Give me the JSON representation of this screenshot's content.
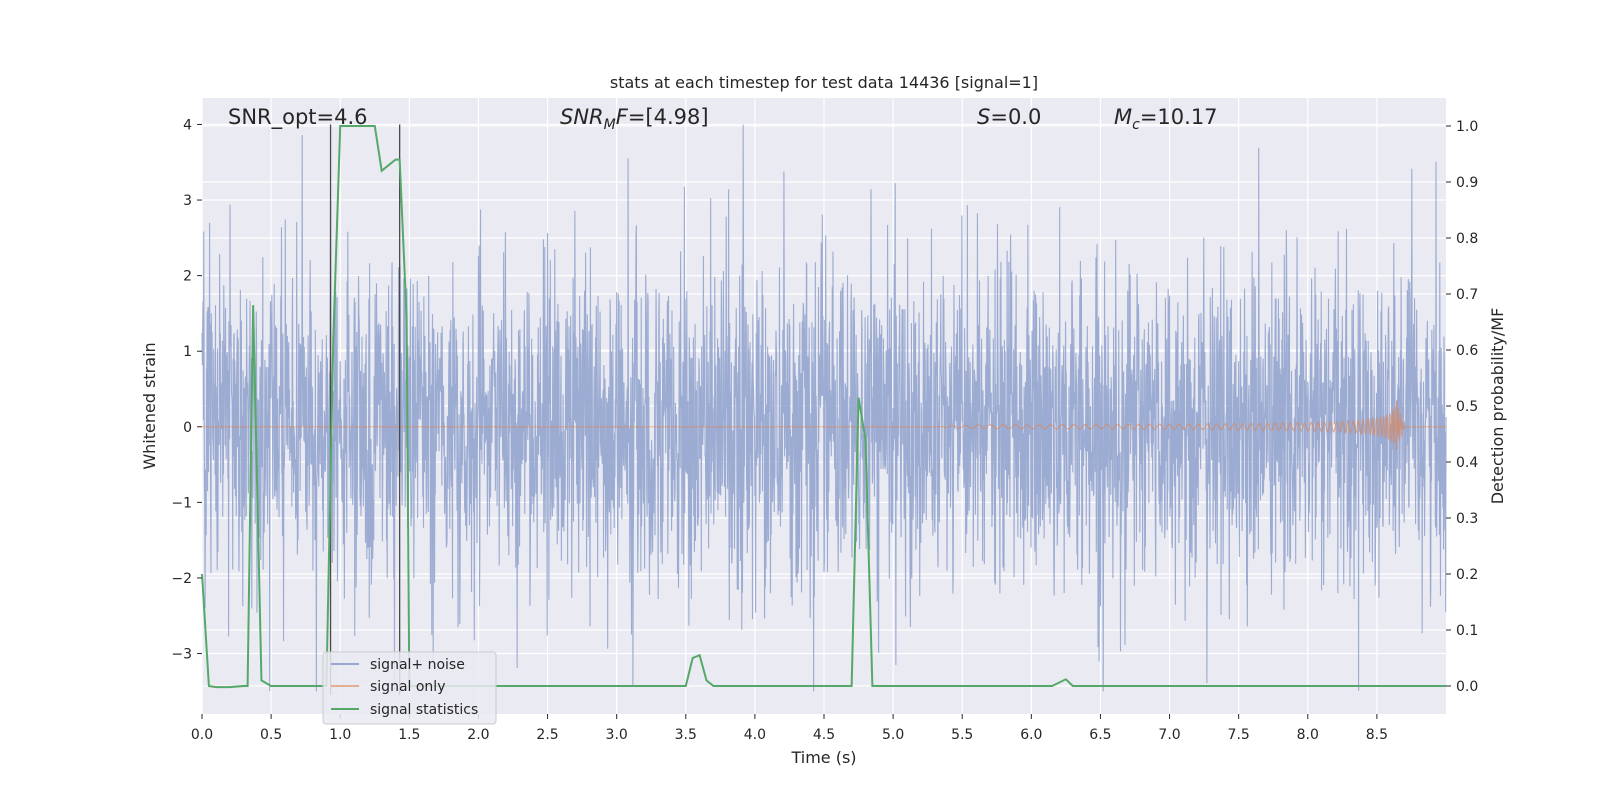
{
  "chart_data": {
    "type": "line",
    "title": "stats at each timestep for test data 14436 [signal=1]",
    "xlabel": "Time (s)",
    "ylabel_left": "Whitened strain",
    "ylabel_right": "Detection probability/MF",
    "xlim": [
      0.0,
      9.0
    ],
    "ylim_left": [
      -3.8,
      4.35
    ],
    "ylim_right": [
      -0.05,
      1.05
    ],
    "x_ticks": [
      "0.0",
      "0.5",
      "1.0",
      "1.5",
      "2.0",
      "2.5",
      "3.0",
      "3.5",
      "4.0",
      "4.5",
      "5.0",
      "5.5",
      "6.0",
      "6.5",
      "7.0",
      "7.5",
      "8.0",
      "8.5"
    ],
    "y_ticks_left": [
      "4",
      "3",
      "2",
      "1",
      "0",
      "−1",
      "−2",
      "−3"
    ],
    "y_ticks_right": [
      "1.0",
      "0.9",
      "0.8",
      "0.7",
      "0.6",
      "0.5",
      "0.4",
      "0.3",
      "0.2",
      "0.1",
      "0.0"
    ],
    "grid": true,
    "legend_position": "lower-left",
    "annotations": {
      "snr_opt": "SNR_opt=4.6",
      "snr_mf": "=[4.98]",
      "s_val": "=0.0",
      "mc": "=10.17"
    },
    "vertical_lines_x": [
      0.93,
      1.43
    ],
    "series": [
      {
        "name": "signal+ noise",
        "axis": "left",
        "color": "#97a8d0",
        "description_value_range": [
          -3.5,
          4.0
        ]
      },
      {
        "name": "signal only",
        "axis": "left",
        "color": "#dd8452",
        "chirp_start": 5.3,
        "chirp_peak": 8.65,
        "chirp_peak_amplitude": 0.9
      },
      {
        "name": "signal statistics",
        "axis": "right",
        "color": "#55a868",
        "x": [
          0.0,
          0.05,
          0.1,
          0.2,
          0.3,
          0.33,
          0.37,
          0.43,
          0.5,
          0.6,
          0.8,
          0.85,
          0.9,
          0.95,
          1.0,
          1.05,
          1.1,
          1.2,
          1.25,
          1.3,
          1.35,
          1.4,
          1.43,
          1.48,
          1.5,
          1.55,
          1.6,
          2.0,
          2.5,
          3.0,
          3.3,
          3.4,
          3.5,
          3.55,
          3.6,
          3.65,
          3.7,
          3.75,
          4.0,
          4.5,
          4.65,
          4.7,
          4.75,
          4.8,
          4.85,
          4.9,
          5.0,
          5.5,
          6.0,
          6.15,
          6.25,
          6.3,
          6.4,
          7.0,
          7.5,
          8.0,
          8.5,
          9.0
        ],
        "y": [
          0.2,
          0.0,
          -0.002,
          -0.002,
          0.0,
          0.0,
          0.68,
          0.01,
          0.0,
          0.0,
          0.0,
          0.0,
          0.0,
          0.62,
          1.0,
          1.0,
          1.0,
          1.0,
          1.0,
          0.92,
          0.93,
          0.94,
          0.94,
          0.66,
          0.0,
          0.0,
          0.0,
          0.0,
          0.0,
          0.0,
          0.0,
          0.0,
          0.0,
          0.05,
          0.055,
          0.01,
          0.0,
          0.0,
          0.0,
          0.0,
          0.0,
          0.0,
          0.515,
          0.44,
          0.0,
          0.0,
          0.0,
          0.0,
          0.0,
          0.0,
          0.012,
          0.0,
          0.0,
          0.0,
          0.0,
          0.0,
          0.0,
          0.0
        ]
      }
    ]
  }
}
